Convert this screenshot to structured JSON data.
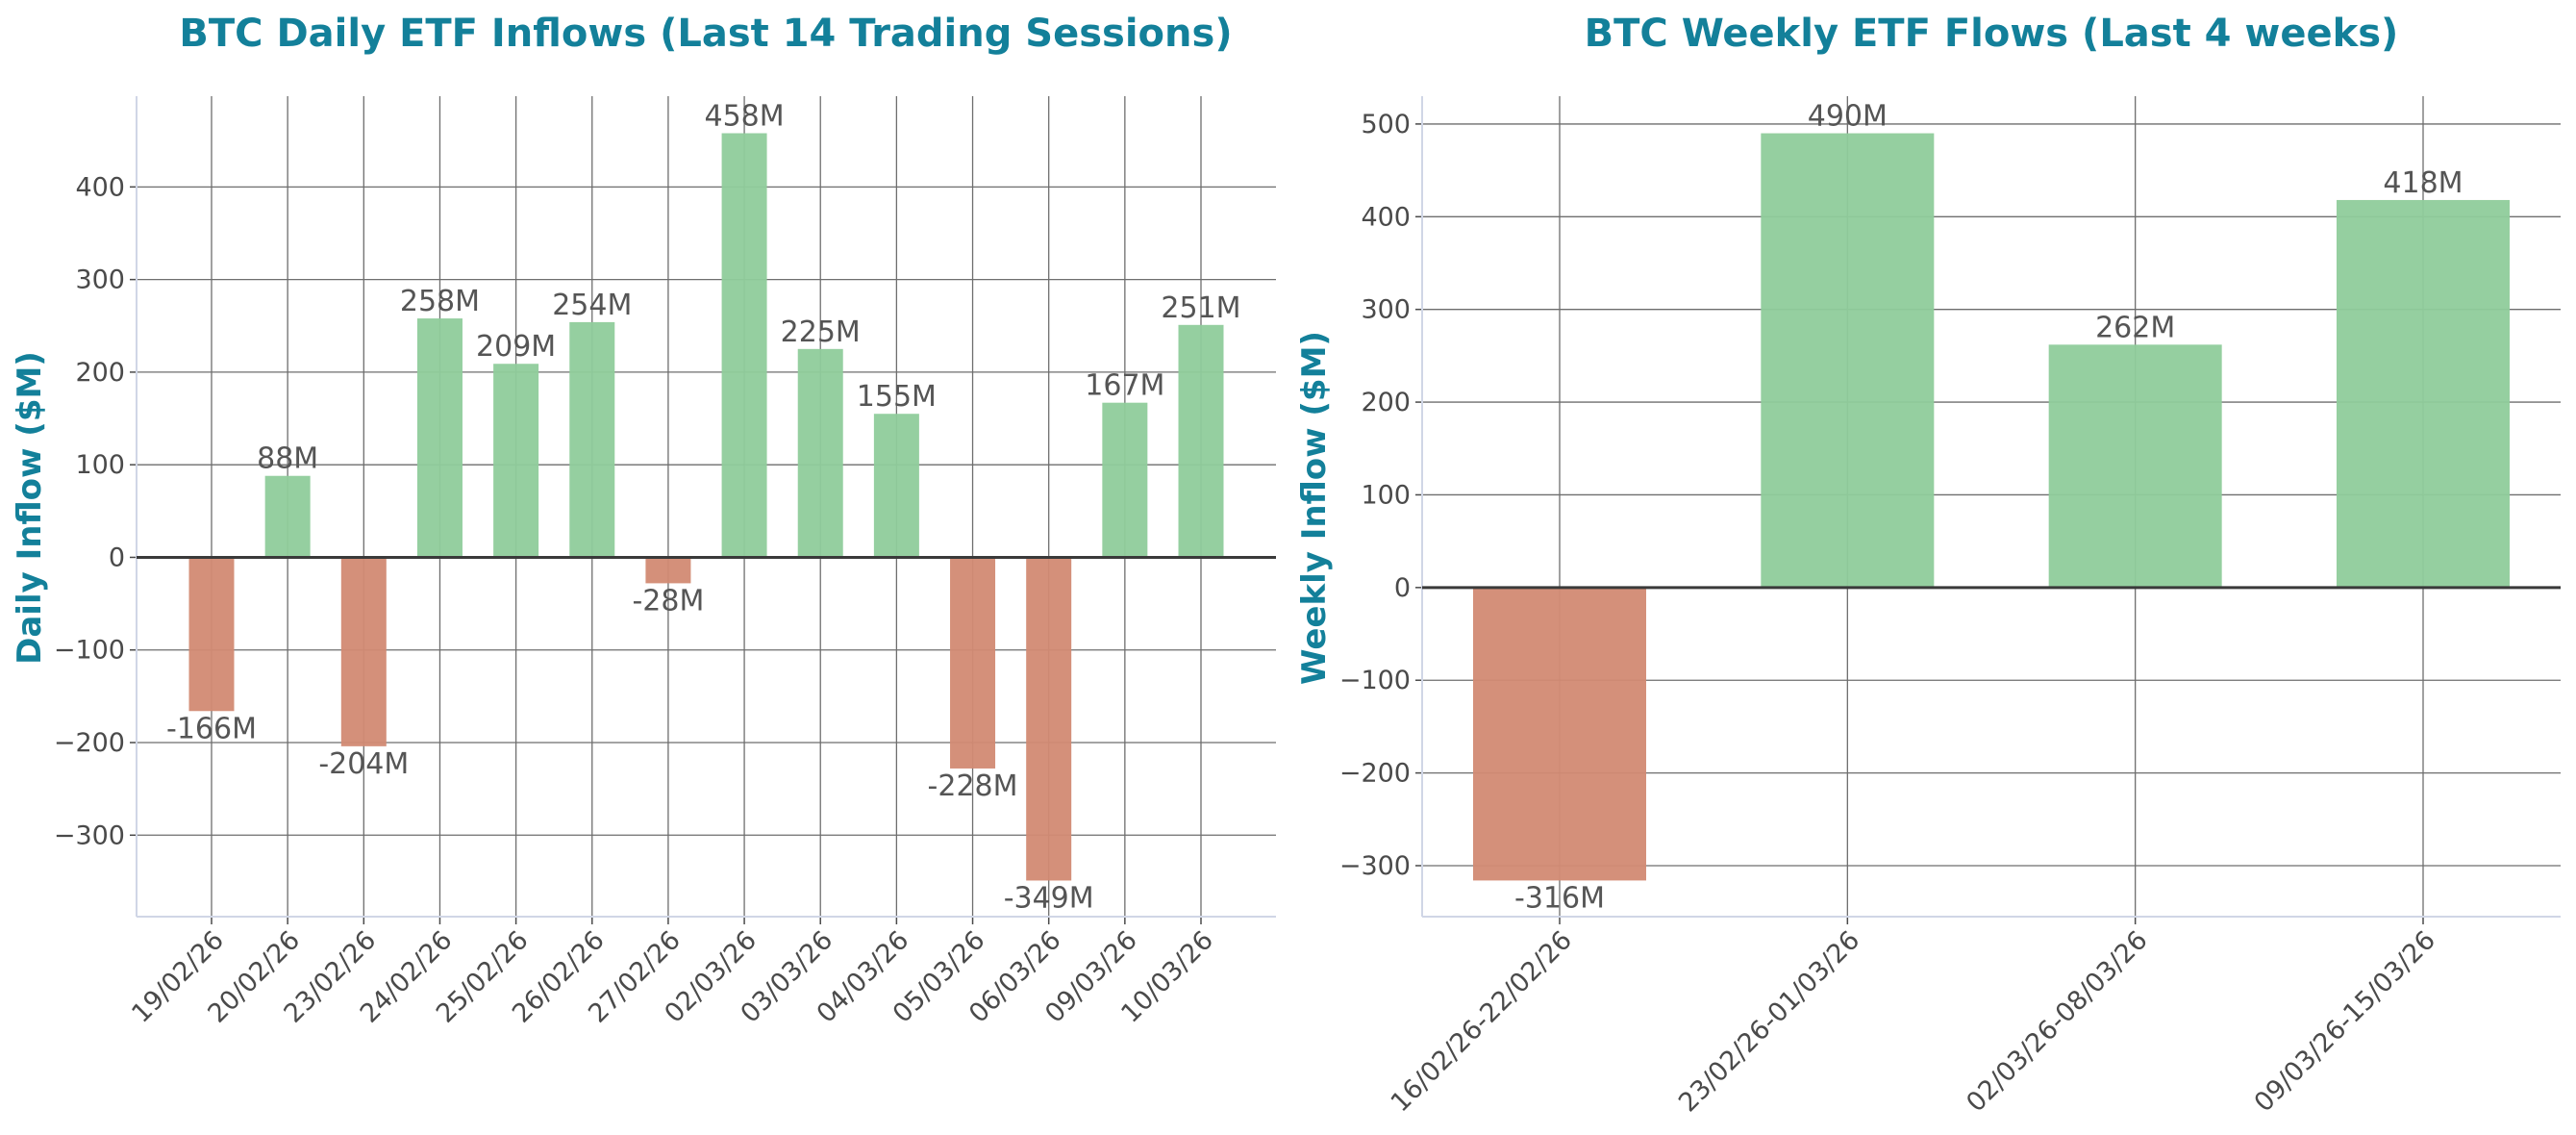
{
  "colors": {
    "title": "#13809a",
    "positive": "#8fcc9b",
    "negative": "#d28a73",
    "text": "#4a4a4a",
    "grid": "#6e6e6e",
    "zero_line": "#3a3a3a",
    "spine": "#d0d6e6"
  },
  "chart_data": [
    {
      "type": "bar",
      "title": "BTC Daily ETF Inflows (Last 14 Trading Sessions)",
      "xlabel": "",
      "ylabel": "Daily Inflow ($M)",
      "ylim": [
        -388,
        498
      ],
      "yticks": [
        -300,
        -200,
        -100,
        0,
        100,
        200,
        300,
        400
      ],
      "grid": true,
      "categories": [
        "19/02/26",
        "20/02/26",
        "23/02/26",
        "24/02/26",
        "25/02/26",
        "26/02/26",
        "27/02/26",
        "02/03/26",
        "03/03/26",
        "04/03/26",
        "05/03/26",
        "06/03/26",
        "09/03/26",
        "10/03/26"
      ],
      "values": [
        -166,
        88,
        -204,
        258,
        209,
        254,
        -28,
        458,
        225,
        155,
        -228,
        -349,
        167,
        251
      ],
      "data_labels": [
        "-166M",
        "88M",
        "-204M",
        "258M",
        "209M",
        "254M",
        "-28M",
        "458M",
        "225M",
        "155M",
        "-228M",
        "-349M",
        "167M",
        "251M"
      ]
    },
    {
      "type": "bar",
      "title": "BTC Weekly ETF Flows (Last 4 weeks)",
      "xlabel": "",
      "ylabel": "Weekly Inflow ($M)",
      "ylim": [
        -355,
        530
      ],
      "yticks": [
        -300,
        -200,
        -100,
        0,
        100,
        200,
        300,
        400,
        500
      ],
      "grid": true,
      "categories": [
        "16/02/26-22/02/26",
        "23/02/26-01/03/26",
        "02/03/26-08/03/26",
        "09/03/26-15/03/26"
      ],
      "values": [
        -316,
        490,
        262,
        418
      ],
      "data_labels": [
        "-316M",
        "490M",
        "262M",
        "418M"
      ]
    }
  ]
}
